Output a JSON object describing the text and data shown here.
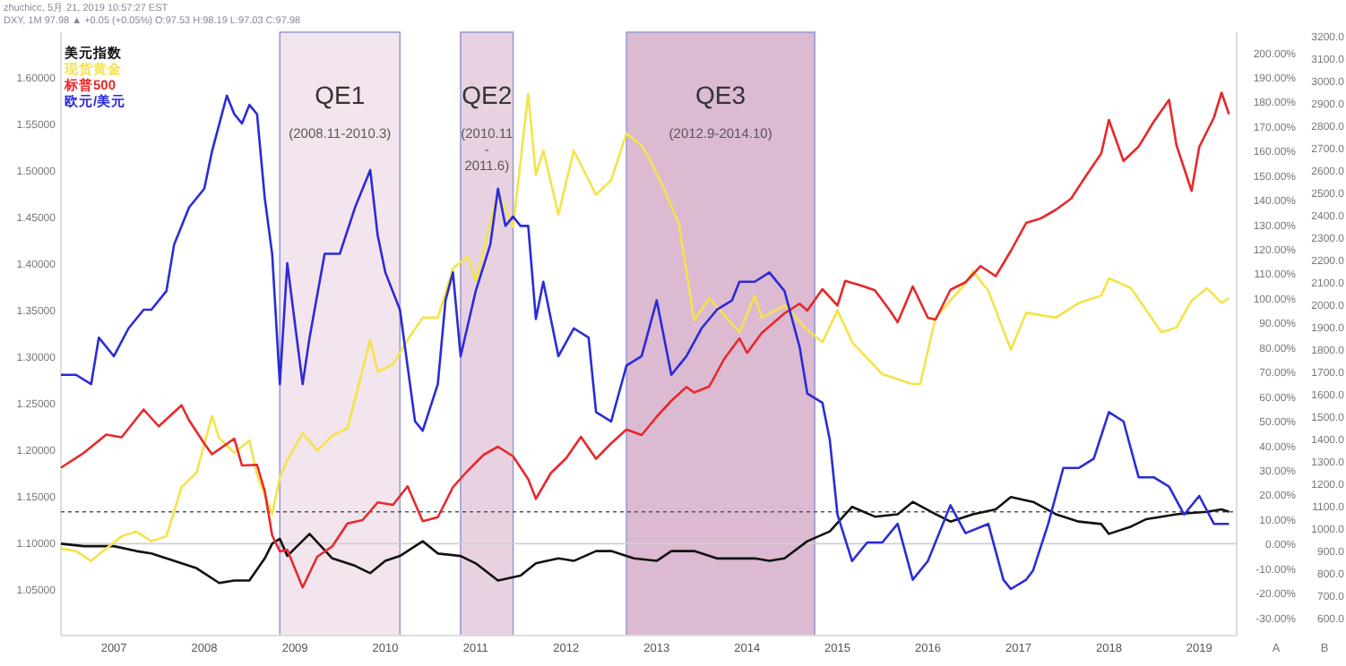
{
  "chart_data": {
    "type": "line",
    "annotations": [
      "zhuchicc, 5月 21, 2019 10:57:27 EST",
      "DXY, 1M 97.98 ▲ +0.05 (+0.05%) O:97.53 H:98.19 L:97.03 C:97.98"
    ],
    "y2label": "A",
    "y3label": "B",
    "legend": "top left",
    "xlim": [
      "2006-06",
      "2019-06"
    ],
    "xticks": [
      "2007",
      "2008",
      "2009",
      "2010",
      "2011",
      "2012",
      "2013",
      "2014",
      "2015",
      "2016",
      "2017",
      "2018",
      "2019"
    ],
    "ylim": [
      1.0,
      1.648
    ],
    "yticks": [
      {
        "value": 1.05,
        "label": "1.05000"
      },
      {
        "value": 1.1,
        "label": "1.10000"
      },
      {
        "value": 1.15,
        "label": "1.15000"
      },
      {
        "value": 1.2,
        "label": "1.20000"
      },
      {
        "value": 1.25,
        "label": "1.25000"
      },
      {
        "value": 1.3,
        "label": "1.30000"
      },
      {
        "value": 1.35,
        "label": "1.35000"
      },
      {
        "value": 1.4,
        "label": "1.40000"
      },
      {
        "value": 1.45,
        "label": "1.45000"
      },
      {
        "value": 1.5,
        "label": "1.50000"
      },
      {
        "value": 1.55,
        "label": "1.55000"
      },
      {
        "value": 1.6,
        "label": "1.60000"
      }
    ],
    "y2lim": [
      -37.4,
      208.2
    ],
    "y2ticks": [
      {
        "value": -30,
        "label": "-30.00%"
      },
      {
        "value": -20,
        "label": "-20.00%"
      },
      {
        "value": -10,
        "label": "-10.00%"
      },
      {
        "value": 0,
        "label": "0.00%"
      },
      {
        "value": 10,
        "label": "10.00%"
      },
      {
        "value": 20,
        "label": "20.00%"
      },
      {
        "value": 30,
        "label": "30.00%"
      },
      {
        "value": 40,
        "label": "40.00%"
      },
      {
        "value": 50,
        "label": "50.00%"
      },
      {
        "value": 60,
        "label": "60.00%"
      },
      {
        "value": 70,
        "label": "70.00%"
      },
      {
        "value": 80,
        "label": "80.00%"
      },
      {
        "value": 90,
        "label": "90.00%"
      },
      {
        "value": 100,
        "label": "100.00%"
      },
      {
        "value": 110,
        "label": "110.00%"
      },
      {
        "value": 120,
        "label": "120.00%"
      },
      {
        "value": 130,
        "label": "130.00%"
      },
      {
        "value": 140,
        "label": "140.00%"
      },
      {
        "value": 150,
        "label": "150.00%"
      },
      {
        "value": 160,
        "label": "160.00%"
      },
      {
        "value": 170,
        "label": "170.00%"
      },
      {
        "value": 180,
        "label": "180.00%"
      },
      {
        "value": 190,
        "label": "190.00%"
      },
      {
        "value": 200,
        "label": "200.00%"
      }
    ],
    "y3lim": [
      520,
      3216
    ],
    "y3ticks": [
      {
        "value": 600,
        "label": "600.0"
      },
      {
        "value": 700,
        "label": "700.0"
      },
      {
        "value": 800,
        "label": "800.0"
      },
      {
        "value": 900,
        "label": "900.0"
      },
      {
        "value": 1000,
        "label": "1000.0"
      },
      {
        "value": 1100,
        "label": "1100.0"
      },
      {
        "value": 1200,
        "label": "1200.0"
      },
      {
        "value": 1300,
        "label": "1300.0"
      },
      {
        "value": 1400,
        "label": "1400.0"
      },
      {
        "value": 1500,
        "label": "1500.0"
      },
      {
        "value": 1600,
        "label": "1600.0"
      },
      {
        "value": 1700,
        "label": "1700.0"
      },
      {
        "value": 1800,
        "label": "1800.0"
      },
      {
        "value": 1900,
        "label": "1900.0"
      },
      {
        "value": 2000,
        "label": "2000.0"
      },
      {
        "value": 2100,
        "label": "2100.0"
      },
      {
        "value": 2200,
        "label": "2200.0"
      },
      {
        "value": 2300,
        "label": "2300.0"
      },
      {
        "value": 2400,
        "label": "2400.0"
      },
      {
        "value": 2500,
        "label": "2500.0"
      },
      {
        "value": 2600,
        "label": "2600.0"
      },
      {
        "value": 2700,
        "label": "2700.0"
      },
      {
        "value": 2800,
        "label": "2800.0"
      },
      {
        "value": 2900,
        "label": "2900.0"
      },
      {
        "value": 3000,
        "label": "3000.0"
      },
      {
        "value": 3100,
        "label": "3100.0"
      },
      {
        "value": 3200,
        "label": "3200.0"
      }
    ],
    "bands": [
      {
        "axis": "x",
        "from": "2008-11",
        "to": "2010-03",
        "label": "QE1\n(2008.11-2010.3)",
        "color": "#f3e5ed"
      },
      {
        "axis": "x",
        "from": "2010-11",
        "to": "2011-06",
        "label": "QE2\n(2010.11\n-\n2011.6)",
        "color": "#e8d2e2"
      },
      {
        "axis": "x",
        "from": "2012-09",
        "to": "2014-10",
        "label": "QE3\n(2012.9-2014.10)",
        "color": "#dcbad2"
      }
    ],
    "ref_lines": [
      {
        "axis": "y2",
        "value": 0,
        "color": "#d0d0d0",
        "line_style": "solid"
      },
      {
        "axis": "y2",
        "value": 13,
        "color": "#555555",
        "line_style": "dotted"
      }
    ],
    "series": [
      {
        "name": "美元指数",
        "color": "#111111",
        "axis": "y2",
        "x": [
          "2006-06",
          "2006-09",
          "2007-01",
          "2007-04",
          "2007-06",
          "2007-09",
          "2007-12",
          "2008-03",
          "2008-05",
          "2008-07",
          "2008-09",
          "2008-10",
          "2008-11",
          "2008-12",
          "2009-03",
          "2009-06",
          "2009-09",
          "2009-11",
          "2010-01",
          "2010-03",
          "2010-06",
          "2010-08",
          "2010-11",
          "2011-01",
          "2011-04",
          "2011-07",
          "2011-09",
          "2011-12",
          "2012-02",
          "2012-05",
          "2012-07",
          "2012-10",
          "2013-01",
          "2013-03",
          "2013-06",
          "2013-09",
          "2013-12",
          "2014-02",
          "2014-04",
          "2014-06",
          "2014-09",
          "2014-12",
          "2015-03",
          "2015-06",
          "2015-09",
          "2015-11",
          "2016-02",
          "2016-04",
          "2016-07",
          "2016-10",
          "2016-12",
          "2017-03",
          "2017-06",
          "2017-09",
          "2017-12",
          "2018-01",
          "2018-04",
          "2018-06",
          "2018-08",
          "2018-10",
          "2018-12",
          "2019-02",
          "2019-04",
          "2019-05"
        ],
        "values": [
          0,
          -1,
          -1,
          -3,
          -4,
          -7,
          -10,
          -16,
          -15,
          -15,
          -6,
          0,
          2,
          -5,
          4,
          -6,
          -9,
          -12,
          -7,
          -5,
          1,
          -4,
          -5,
          -8,
          -15,
          -13,
          -8,
          -6,
          -7,
          -3,
          -3,
          -6,
          -7,
          -3,
          -3,
          -6,
          -6,
          -6,
          -7,
          -6,
          1,
          5,
          15,
          11,
          12,
          17,
          12,
          9,
          12,
          14,
          19,
          17,
          12,
          9,
          8,
          4,
          7,
          10,
          11,
          12,
          12.5,
          13,
          14,
          13
        ]
      },
      {
        "name": "现货黄金",
        "color": "#f5e34a",
        "axis": "y2",
        "x": [
          "2006-06",
          "2006-08",
          "2006-10",
          "2006-12",
          "2007-02",
          "2007-04",
          "2007-06",
          "2007-08",
          "2007-10",
          "2007-12",
          "2008-02",
          "2008-03",
          "2008-05",
          "2008-07",
          "2008-08",
          "2008-10",
          "2008-11",
          "2008-12",
          "2009-02",
          "2009-04",
          "2009-06",
          "2009-08",
          "2009-11",
          "2009-12",
          "2010-02",
          "2010-04",
          "2010-06",
          "2010-08",
          "2010-10",
          "2010-12",
          "2011-01",
          "2011-04",
          "2011-06",
          "2011-08",
          "2011-09",
          "2011-10",
          "2011-12",
          "2012-02",
          "2012-05",
          "2012-07",
          "2012-09",
          "2012-11",
          "2012-12",
          "2013-02",
          "2013-04",
          "2013-06",
          "2013-08",
          "2013-12",
          "2014-02",
          "2014-03",
          "2014-06",
          "2014-09",
          "2014-11",
          "2015-01",
          "2015-03",
          "2015-07",
          "2015-11",
          "2015-12",
          "2016-02",
          "2016-06",
          "2016-07",
          "2016-09",
          "2016-12",
          "2017-02",
          "2017-06",
          "2017-09",
          "2017-12",
          "2018-01",
          "2018-04",
          "2018-08",
          "2018-10",
          "2018-12",
          "2019-02",
          "2019-04",
          "2019-05"
        ],
        "values": [
          -2,
          -3,
          -7,
          -2,
          3,
          5,
          1,
          3,
          23,
          29,
          52,
          43,
          37,
          42,
          28,
          12,
          27,
          34,
          45,
          38,
          44,
          47,
          83,
          70,
          73,
          83,
          92,
          92,
          112,
          117,
          107,
          143,
          129,
          183,
          150,
          160,
          134,
          160,
          142,
          148,
          167,
          162,
          157,
          144,
          130,
          91,
          100,
          86,
          101,
          92,
          97,
          87,
          82,
          95,
          82,
          69,
          65,
          65,
          92,
          106,
          111,
          103,
          79,
          94,
          92,
          98,
          101,
          108,
          104,
          86,
          88,
          99,
          104,
          98,
          100
        ]
      },
      {
        "name": "标普500",
        "color": "#e8282b",
        "axis": "y3",
        "x": [
          "2006-06",
          "2006-09",
          "2006-12",
          "2007-02",
          "2007-05",
          "2007-07",
          "2007-10",
          "2007-11",
          "2008-01",
          "2008-02",
          "2008-05",
          "2008-06",
          "2008-08",
          "2008-09",
          "2008-10",
          "2008-11",
          "2008-12",
          "2009-02",
          "2009-04",
          "2009-06",
          "2009-08",
          "2009-10",
          "2009-12",
          "2010-02",
          "2010-04",
          "2010-06",
          "2010-08",
          "2010-10",
          "2010-12",
          "2011-02",
          "2011-04",
          "2011-06",
          "2011-08",
          "2011-09",
          "2011-11",
          "2012-01",
          "2012-03",
          "2012-05",
          "2012-07",
          "2012-09",
          "2012-11",
          "2013-01",
          "2013-03",
          "2013-05",
          "2013-06",
          "2013-08",
          "2013-10",
          "2013-12",
          "2014-01",
          "2014-03",
          "2014-06",
          "2014-08",
          "2014-09",
          "2014-11",
          "2015-01",
          "2015-02",
          "2015-04",
          "2015-06",
          "2015-08",
          "2015-09",
          "2015-11",
          "2016-01",
          "2016-02",
          "2016-04",
          "2016-06",
          "2016-08",
          "2016-10",
          "2016-12",
          "2017-02",
          "2017-04",
          "2017-06",
          "2017-08",
          "2017-10",
          "2017-12",
          "2018-01",
          "2018-03",
          "2018-05",
          "2018-07",
          "2018-09",
          "2018-10",
          "2018-12",
          "2019-01",
          "2019-03",
          "2019-04",
          "2019-05"
        ],
        "values": [
          1270,
          1336,
          1418,
          1406,
          1530,
          1455,
          1549,
          1481,
          1378,
          1330,
          1400,
          1280,
          1283,
          1166,
          968,
          896,
          903,
          735,
          872,
          919,
          1021,
          1036,
          1115,
          1104,
          1187,
          1031,
          1049,
          1183,
          1258,
          1327,
          1364,
          1321,
          1219,
          1131,
          1247,
          1312,
          1408,
          1310,
          1379,
          1441,
          1416,
          1498,
          1569,
          1631,
          1606,
          1633,
          1757,
          1848,
          1783,
          1872,
          1960,
          2003,
          1972,
          2068,
          1995,
          2105,
          2086,
          2063,
          1972,
          1920,
          2080,
          1940,
          1932,
          2065,
          2099,
          2171,
          2126,
          2239,
          2364,
          2384,
          2423,
          2472,
          2575,
          2674,
          2824,
          2641,
          2705,
          2816,
          2914,
          2711,
          2507,
          2704,
          2834,
          2946,
          2850
        ]
      },
      {
        "name": "欧元/美元",
        "color": "#2b2bd9",
        "axis": "y",
        "x": [
          "2006-06",
          "2006-08",
          "2006-10",
          "2006-11",
          "2007-01",
          "2007-03",
          "2007-05",
          "2007-06",
          "2007-08",
          "2007-09",
          "2007-11",
          "2008-01",
          "2008-02",
          "2008-04",
          "2008-05",
          "2008-06",
          "2008-07",
          "2008-08",
          "2008-09",
          "2008-10",
          "2008-11",
          "2008-12",
          "2009-02",
          "2009-03",
          "2009-05",
          "2009-07",
          "2009-09",
          "2009-11",
          "2009-12",
          "2010-01",
          "2010-03",
          "2010-05",
          "2010-06",
          "2010-08",
          "2010-09",
          "2010-10",
          "2010-11",
          "2011-01",
          "2011-03",
          "2011-04",
          "2011-05",
          "2011-06",
          "2011-07",
          "2011-08",
          "2011-09",
          "2011-10",
          "2011-12",
          "2012-02",
          "2012-04",
          "2012-05",
          "2012-07",
          "2012-09",
          "2012-11",
          "2013-01",
          "2013-03",
          "2013-05",
          "2013-07",
          "2013-09",
          "2013-11",
          "2013-12",
          "2014-02",
          "2014-04",
          "2014-06",
          "2014-08",
          "2014-09",
          "2014-11",
          "2014-12",
          "2015-01",
          "2015-03",
          "2015-05",
          "2015-07",
          "2015-09",
          "2015-11",
          "2016-01",
          "2016-04",
          "2016-06",
          "2016-09",
          "2016-11",
          "2016-12",
          "2017-02",
          "2017-03",
          "2017-05",
          "2017-07",
          "2017-09",
          "2017-11",
          "2018-01",
          "2018-03",
          "2018-05",
          "2018-07",
          "2018-09",
          "2018-11",
          "2019-01",
          "2019-03",
          "2019-05"
        ],
        "values": [
          1.28,
          1.28,
          1.27,
          1.32,
          1.3,
          1.33,
          1.35,
          1.35,
          1.37,
          1.42,
          1.46,
          1.48,
          1.52,
          1.58,
          1.56,
          1.55,
          1.57,
          1.56,
          1.47,
          1.41,
          1.27,
          1.4,
          1.27,
          1.32,
          1.41,
          1.41,
          1.46,
          1.5,
          1.43,
          1.39,
          1.35,
          1.23,
          1.22,
          1.27,
          1.36,
          1.39,
          1.3,
          1.37,
          1.42,
          1.48,
          1.44,
          1.45,
          1.44,
          1.44,
          1.34,
          1.38,
          1.3,
          1.33,
          1.32,
          1.24,
          1.23,
          1.29,
          1.3,
          1.36,
          1.28,
          1.3,
          1.33,
          1.35,
          1.36,
          1.38,
          1.38,
          1.39,
          1.37,
          1.31,
          1.26,
          1.25,
          1.21,
          1.13,
          1.08,
          1.1,
          1.1,
          1.12,
          1.06,
          1.08,
          1.14,
          1.11,
          1.12,
          1.06,
          1.05,
          1.06,
          1.07,
          1.12,
          1.18,
          1.18,
          1.19,
          1.24,
          1.23,
          1.17,
          1.17,
          1.16,
          1.13,
          1.15,
          1.12,
          1.12
        ]
      }
    ]
  }
}
